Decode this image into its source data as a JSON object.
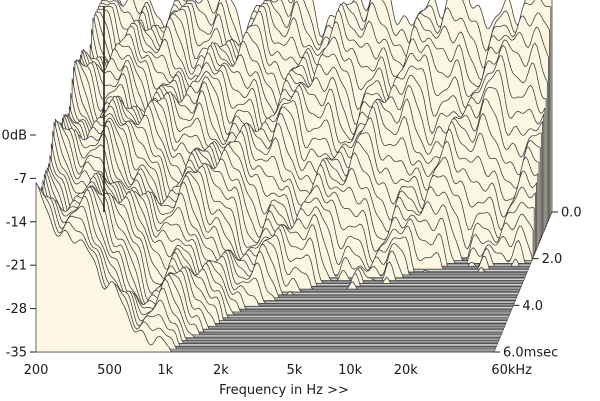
{
  "chart_data": {
    "type": "waterfall",
    "title": "",
    "xlabel": "Frequency in Hz >>",
    "ylabel": "",
    "x_scale": "log",
    "xlim": [
      200,
      60000
    ],
    "ylim": [
      -35,
      0
    ],
    "x_ticks": [
      {
        "value": 200,
        "label": "200"
      },
      {
        "value": 500,
        "label": "500"
      },
      {
        "value": 1000,
        "label": "1k"
      },
      {
        "value": 2000,
        "label": "2k"
      },
      {
        "value": 5000,
        "label": "5k"
      },
      {
        "value": 10000,
        "label": "10k"
      },
      {
        "value": 20000,
        "label": "20k"
      },
      {
        "value": 60000,
        "label": "60kHz"
      }
    ],
    "y_ticks": [
      {
        "value": 0,
        "label": "0dB"
      },
      {
        "value": -7,
        "label": "-7"
      },
      {
        "value": -14,
        "label": "-14"
      },
      {
        "value": -21,
        "label": "-21"
      },
      {
        "value": -28,
        "label": "-28"
      },
      {
        "value": -35,
        "label": "-35"
      }
    ],
    "time_ticks": [
      {
        "value": 0.0,
        "label": "0.0"
      },
      {
        "value": 2.0,
        "label": "2.0"
      },
      {
        "value": 4.0,
        "label": "4.0"
      },
      {
        "value": 6.0,
        "label": "6.0msec"
      }
    ],
    "time_range_ms": [
      0,
      6
    ],
    "slices": 50,
    "colors": {
      "surface": "#fbf7e3",
      "lines": "#3a3a3a",
      "floor": "#9a9a9a",
      "floor_line": "#e6e6e6"
    }
  }
}
